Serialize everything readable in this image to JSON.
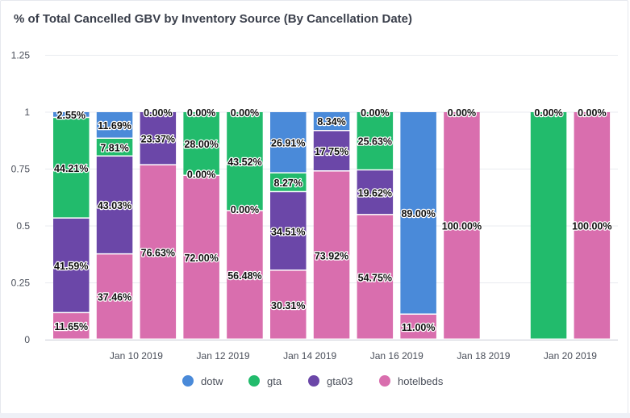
{
  "chart_data": {
    "type": "bar",
    "stacked": true,
    "title": "% of Total Cancelled GBV by Inventory Source (By Cancellation Date)",
    "ylim": [
      0,
      1.25
    ],
    "y_ticks": [
      "0",
      "0.25",
      "0.5",
      "0.75",
      "1",
      "1.25"
    ],
    "y_tick_values": [
      0,
      0.25,
      0.5,
      0.75,
      1,
      1.25
    ],
    "x_tick_labels": [
      {
        "label": "Jan 10 2019",
        "after_bar": 1
      },
      {
        "label": "Jan 12 2019",
        "after_bar": 3
      },
      {
        "label": "Jan 14 2019",
        "after_bar": 5
      },
      {
        "label": "Jan 16 2019",
        "after_bar": 7
      },
      {
        "label": "Jan 18 2019",
        "after_bar": 9
      },
      {
        "label": "Jan 20 2019",
        "after_bar": 11
      }
    ],
    "grid": true,
    "legend_position": "bottom",
    "series": [
      {
        "name": "dotw",
        "color": "#4a8ad9"
      },
      {
        "name": "gta",
        "color": "#22bb6c"
      },
      {
        "name": "gta03",
        "color": "#6b47a8"
      },
      {
        "name": "hotelbeds",
        "color": "#d96eae"
      }
    ],
    "bars": [
      {
        "date": "Jan 9 2019",
        "values": [
          0.0255,
          0.4421,
          0.4159,
          0.1165
        ],
        "labels": [
          "2.55%",
          "44.21%",
          "41.59%",
          "11.65%"
        ]
      },
      {
        "date": "Jan 10 2019",
        "values": [
          0.1169,
          0.0781,
          0.4303,
          0.3746
        ],
        "labels": [
          "11.69%",
          "7.81%",
          "43.03%",
          "37.46%"
        ]
      },
      {
        "date": "Jan 11 2019",
        "values": [
          0,
          0,
          0.2337,
          0.7663
        ],
        "labels": [
          "",
          "",
          "23.37%",
          "76.63%"
        ],
        "top_label": "0.00%"
      },
      {
        "date": "Jan 12 2019",
        "values": [
          0,
          0.28,
          0,
          0.72
        ],
        "labels": [
          "",
          "28.00%",
          "0.00%",
          "72.00%"
        ],
        "top_label": "0.00%"
      },
      {
        "date": "Jan 13 2019",
        "values": [
          0,
          0.4352,
          0,
          0.5648
        ],
        "labels": [
          "",
          "43.52%",
          "0.00%",
          "56.48%"
        ],
        "top_label": "0.00%"
      },
      {
        "date": "Jan 14 2019",
        "values": [
          0.2691,
          0.0827,
          0.3451,
          0.3031
        ],
        "labels": [
          "26.91%",
          "8.27%",
          "34.51%",
          "30.31%"
        ]
      },
      {
        "date": "Jan 15 2019",
        "values": [
          0.0834,
          0,
          0.1775,
          0.7392
        ],
        "labels": [
          "8.34%",
          "",
          "17.75%",
          "73.92%"
        ]
      },
      {
        "date": "Jan 16 2019",
        "values": [
          0,
          0.2563,
          0.1962,
          0.5475
        ],
        "labels": [
          "",
          "25.63%",
          "19.62%",
          "54.75%"
        ],
        "top_label": "0.00%"
      },
      {
        "date": "Jan 17 2019",
        "values": [
          0.89,
          0,
          0,
          0.11
        ],
        "labels": [
          "89.00%",
          "",
          "",
          "11.00%"
        ]
      },
      {
        "date": "Jan 18 2019",
        "values": [
          0,
          0,
          0,
          1.0
        ],
        "labels": [
          "",
          "",
          "",
          "100.00%"
        ],
        "top_label": "0.00%"
      },
      {
        "date": "Jan 19 2019",
        "values": [
          0,
          0,
          0,
          0
        ],
        "labels": [
          "",
          "",
          "",
          ""
        ]
      },
      {
        "date": "Jan 20 2019",
        "values": [
          0,
          1.0,
          0,
          0
        ],
        "labels": [
          "",
          "",
          "",
          ""
        ],
        "top_label": "0.00%"
      },
      {
        "date": "Jan 21 2019",
        "values": [
          0,
          0,
          0,
          1.0
        ],
        "labels": [
          "",
          "",
          "",
          "100.00%"
        ],
        "top_label": "0.00%"
      }
    ]
  }
}
